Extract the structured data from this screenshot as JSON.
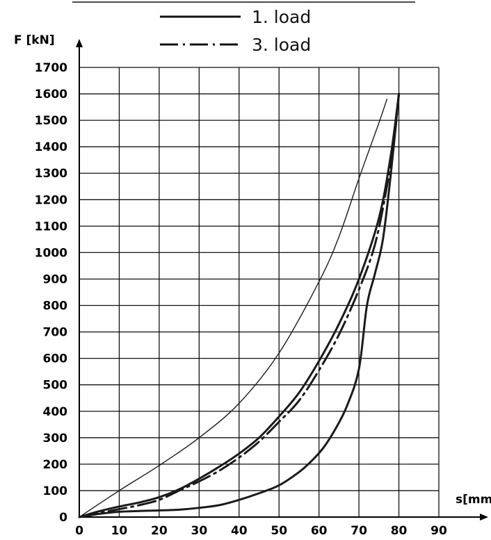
{
  "chart_data": {
    "type": "line",
    "xlabel": "s[mm]",
    "ylabel": "F [kN]",
    "xlim": [
      0,
      90
    ],
    "ylim": [
      0,
      1700
    ],
    "x_ticks": [
      "0",
      "10",
      "20",
      "30",
      "40",
      "50",
      "60",
      "70",
      "80",
      "90"
    ],
    "y_ticks": [
      "0",
      "100",
      "200",
      "300",
      "400",
      "500",
      "600",
      "700",
      "800",
      "900",
      "1000",
      "1100",
      "1200",
      "1300",
      "1400",
      "1500",
      "1600",
      "1700"
    ],
    "grid": true,
    "legend_position": "top-center",
    "legend": [
      {
        "label": "1. load",
        "style": "solid"
      },
      {
        "label": "3. load",
        "style": "dash-dot"
      }
    ],
    "series": [
      {
        "style": "solid-thin",
        "x": [
          0,
          10,
          20,
          30,
          40,
          50,
          60,
          65,
          70,
          75,
          77
        ],
        "y": [
          0,
          100,
          195,
          300,
          430,
          620,
          890,
          1060,
          1280,
          1490,
          1580
        ]
      },
      {
        "name": "1. load",
        "style": "solid",
        "role": "loading",
        "x": [
          0,
          5,
          10,
          15,
          20,
          25,
          30,
          35,
          40,
          45,
          50,
          55,
          60,
          65,
          70,
          75,
          78,
          80
        ],
        "y": [
          0,
          22,
          40,
          55,
          75,
          105,
          145,
          190,
          240,
          300,
          380,
          470,
          590,
          730,
          900,
          1130,
          1370,
          1600
        ]
      },
      {
        "name": "1. load",
        "style": "solid",
        "role": "unloading",
        "x": [
          80,
          78,
          76,
          74,
          72,
          70,
          67,
          64,
          61,
          58,
          55,
          50,
          45,
          40,
          35,
          30,
          25,
          20,
          15,
          10,
          5,
          0
        ],
        "y": [
          1600,
          1300,
          1050,
          920,
          800,
          560,
          420,
          330,
          260,
          210,
          170,
          120,
          90,
          65,
          45,
          35,
          28,
          25,
          23,
          20,
          12,
          0
        ]
      },
      {
        "name": "3. load",
        "style": "dash-dot",
        "x": [
          0,
          5,
          10,
          15,
          20,
          25,
          30,
          35,
          40,
          45,
          50,
          55,
          60,
          65,
          70,
          74,
          77,
          79,
          80
        ],
        "y": [
          0,
          15,
          30,
          45,
          65,
          100,
          135,
          175,
          225,
          285,
          360,
          440,
          555,
          690,
          860,
          1030,
          1250,
          1450,
          1600
        ]
      }
    ]
  }
}
